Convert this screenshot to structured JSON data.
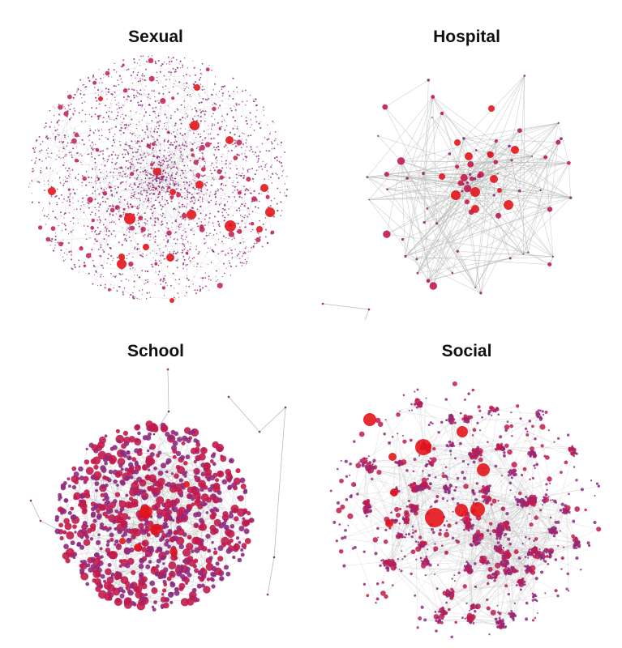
{
  "panels": [
    {
      "id": "sexual",
      "title": "Sexual"
    },
    {
      "id": "hospital",
      "title": "Hospital"
    },
    {
      "id": "school",
      "title": "School"
    },
    {
      "id": "social",
      "title": "Social"
    }
  ],
  "colors": {
    "hub": "#e3141b",
    "node_mid": "#c21a4b",
    "node_small": "#8e2a7f",
    "edge": "#b9bcb9"
  }
}
